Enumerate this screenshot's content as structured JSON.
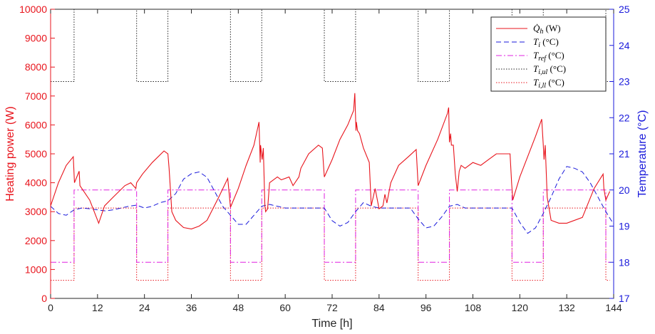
{
  "chart_data": {
    "type": "line",
    "xlabel": "Time [h]",
    "ylabel_left": "Heating power (W)",
    "ylabel_right": "Temperature (°C)",
    "xlim": [
      0,
      144
    ],
    "xticks": [
      0,
      12,
      24,
      36,
      48,
      60,
      72,
      84,
      96,
      108,
      120,
      132,
      144
    ],
    "ylim_left": [
      0,
      10000
    ],
    "yticks_left": [
      0,
      1000,
      2000,
      3000,
      4000,
      5000,
      6000,
      7000,
      8000,
      9000,
      10000
    ],
    "ylim_right": [
      17,
      25
    ],
    "yticks_right": [
      17,
      18,
      19,
      20,
      21,
      22,
      23,
      24,
      25
    ],
    "legend_position": "top-right",
    "grid": false,
    "colors": {
      "left_axis": "#e8141c",
      "right_axis": "#1a1adb"
    },
    "series": [
      {
        "name": "Q̇h (W)",
        "legend_main": "Q̇",
        "legend_sub": "h",
        "legend_unit": " (W)",
        "axis": "left",
        "color": "#e8141c",
        "style": "solid",
        "x": [
          0,
          2,
          4,
          5.8,
          6.1,
          7.3,
          7.5,
          8.5,
          10,
          12.3,
          13.8,
          16,
          19,
          20.5,
          21.8,
          22,
          23.5,
          26,
          29,
          30,
          30.3,
          31,
          32,
          34,
          36,
          38,
          40,
          43,
          45.3,
          46,
          48,
          50,
          52,
          53.3,
          53.6,
          53.7,
          54.1,
          54.4,
          54.8,
          55,
          55.5,
          56,
          58,
          59,
          61,
          62,
          63.5,
          64,
          66,
          68.5,
          69.5,
          70,
          72,
          74,
          76,
          77.5,
          77.8,
          78.1,
          78.2,
          78.5,
          79,
          80,
          81.5,
          82,
          83,
          84,
          85,
          85.5,
          86,
          87,
          89,
          91.5,
          93.5,
          94,
          96,
          99,
          101.5,
          101.8,
          102,
          102.3,
          102.5,
          103,
          103.5,
          104,
          104.5,
          105,
          106,
          108,
          110,
          112,
          114,
          116,
          117.5,
          117.9,
          118.2,
          120,
          122,
          124,
          125.6,
          126,
          126.2,
          126.5,
          127,
          128,
          130,
          132,
          136,
          139,
          141.3,
          141.5,
          142,
          143
        ],
        "y": [
          3200,
          4000,
          4600,
          4900,
          4000,
          4400,
          3900,
          3700,
          3400,
          2600,
          3200,
          3500,
          3900,
          4000,
          3800,
          4000,
          4300,
          4700,
          5100,
          5000,
          4500,
          3000,
          2700,
          2450,
          2400,
          2500,
          2700,
          3500,
          4150,
          3150,
          3800,
          4600,
          5300,
          6100,
          4700,
          5300,
          4800,
          5200,
          3200,
          3000,
          3100,
          4000,
          4200,
          4100,
          4200,
          3900,
          4200,
          4500,
          5000,
          5300,
          5200,
          4200,
          4800,
          5500,
          6000,
          6500,
          7100,
          5800,
          6100,
          5800,
          5700,
          5200,
          4700,
          3200,
          3800,
          3100,
          3200,
          3600,
          3300,
          4000,
          4600,
          4900,
          5150,
          3900,
          4600,
          5500,
          6400,
          6600,
          5400,
          5700,
          5300,
          5300,
          4300,
          3700,
          4400,
          4600,
          4500,
          4700,
          4600,
          4800,
          5000,
          5000,
          5000,
          4000,
          3400,
          4200,
          4900,
          5600,
          6200,
          5300,
          4800,
          5300,
          3500,
          2700,
          2600,
          2600,
          2800,
          3800,
          4300,
          3800,
          3400,
          3700
        ]
      },
      {
        "name": "Ti (°C)",
        "legend_main": "T",
        "legend_sub": "i",
        "legend_unit": " (°C)",
        "axis": "right",
        "color": "#1a1adb",
        "style": "dashed",
        "x": [
          0,
          2,
          4,
          6,
          8,
          10,
          12,
          14,
          16,
          18,
          20,
          22,
          24,
          26,
          28,
          30,
          32,
          34,
          36,
          38,
          40,
          42,
          44,
          46,
          48,
          50,
          52,
          54,
          56,
          58,
          60,
          62,
          64,
          66,
          68,
          70,
          72,
          74,
          76,
          78,
          80,
          82,
          84,
          86,
          88,
          90,
          92,
          94,
          96,
          98,
          100,
          102,
          104,
          106,
          108,
          110,
          112,
          114,
          116,
          118,
          120,
          122,
          124,
          126,
          128,
          130,
          132,
          134,
          136,
          138,
          140,
          142,
          144
        ],
        "y": [
          19.55,
          19.35,
          19.3,
          19.45,
          19.5,
          19.48,
          19.45,
          19.42,
          19.45,
          19.5,
          19.55,
          19.58,
          19.5,
          19.55,
          19.65,
          19.7,
          19.9,
          20.3,
          20.45,
          20.5,
          20.35,
          19.95,
          19.55,
          19.3,
          19.05,
          19.05,
          19.3,
          19.55,
          19.6,
          19.55,
          19.5,
          19.5,
          19.5,
          19.5,
          19.5,
          19.5,
          19.15,
          19.0,
          19.1,
          19.4,
          19.65,
          19.55,
          19.5,
          19.5,
          19.5,
          19.5,
          19.5,
          19.2,
          18.95,
          19.0,
          19.25,
          19.55,
          19.6,
          19.5,
          19.5,
          19.5,
          19.5,
          19.5,
          19.5,
          19.5,
          19.1,
          18.8,
          18.95,
          19.35,
          19.8,
          20.3,
          20.65,
          20.6,
          20.5,
          20.2,
          19.8,
          19.4,
          19.05
        ]
      },
      {
        "name": "Tref (°C)",
        "legend_main": "T",
        "legend_sub": "ref",
        "legend_unit": " (°C)",
        "axis": "right",
        "color": "#e020e0",
        "style": "dashdot",
        "x": [
          0,
          6,
          6,
          22,
          22,
          30,
          30,
          46,
          46,
          54,
          54,
          70,
          70,
          78,
          78,
          94,
          94,
          102,
          102,
          118,
          118,
          126,
          126,
          142,
          142,
          143
        ],
        "y": [
          18,
          18,
          20,
          20,
          18,
          18,
          20,
          20,
          18,
          18,
          20,
          20,
          18,
          18,
          20,
          20,
          18,
          18,
          20,
          20,
          18,
          18,
          20,
          20,
          18,
          18
        ]
      },
      {
        "name": "Ti,ul (°C)",
        "legend_main": "T",
        "legend_sub": "i,ul",
        "legend_unit": " (°C)",
        "axis": "right",
        "color": "#222222",
        "style": "dotted",
        "x": [
          0,
          6,
          6,
          22,
          22,
          30,
          30,
          46,
          46,
          54,
          54,
          70,
          70,
          78,
          78,
          94,
          94,
          102,
          102,
          118,
          118,
          126,
          126,
          142,
          142,
          143
        ],
        "y": [
          23,
          23,
          25,
          25,
          23,
          23,
          25,
          25,
          23,
          23,
          25,
          25,
          23,
          23,
          25,
          25,
          23,
          23,
          25,
          25,
          23,
          23,
          25,
          25,
          23,
          23
        ]
      },
      {
        "name": "Ti,ll (°C)",
        "legend_main": "T",
        "legend_sub": "i,ll",
        "legend_unit": " (°C)",
        "axis": "right",
        "color": "#e8141c",
        "style": "dotted",
        "x": [
          0,
          6,
          6,
          22,
          22,
          30,
          30,
          46,
          46,
          54,
          54,
          70,
          70,
          78,
          78,
          94,
          94,
          102,
          102,
          118,
          118,
          126,
          126,
          142,
          142,
          143
        ],
        "y": [
          17.5,
          17.5,
          19.5,
          19.5,
          17.5,
          17.5,
          19.5,
          19.5,
          17.5,
          17.5,
          19.5,
          19.5,
          17.5,
          17.5,
          19.5,
          19.5,
          17.5,
          17.5,
          19.5,
          19.5,
          17.5,
          17.5,
          19.5,
          19.5,
          17.5,
          17.5
        ]
      }
    ]
  }
}
